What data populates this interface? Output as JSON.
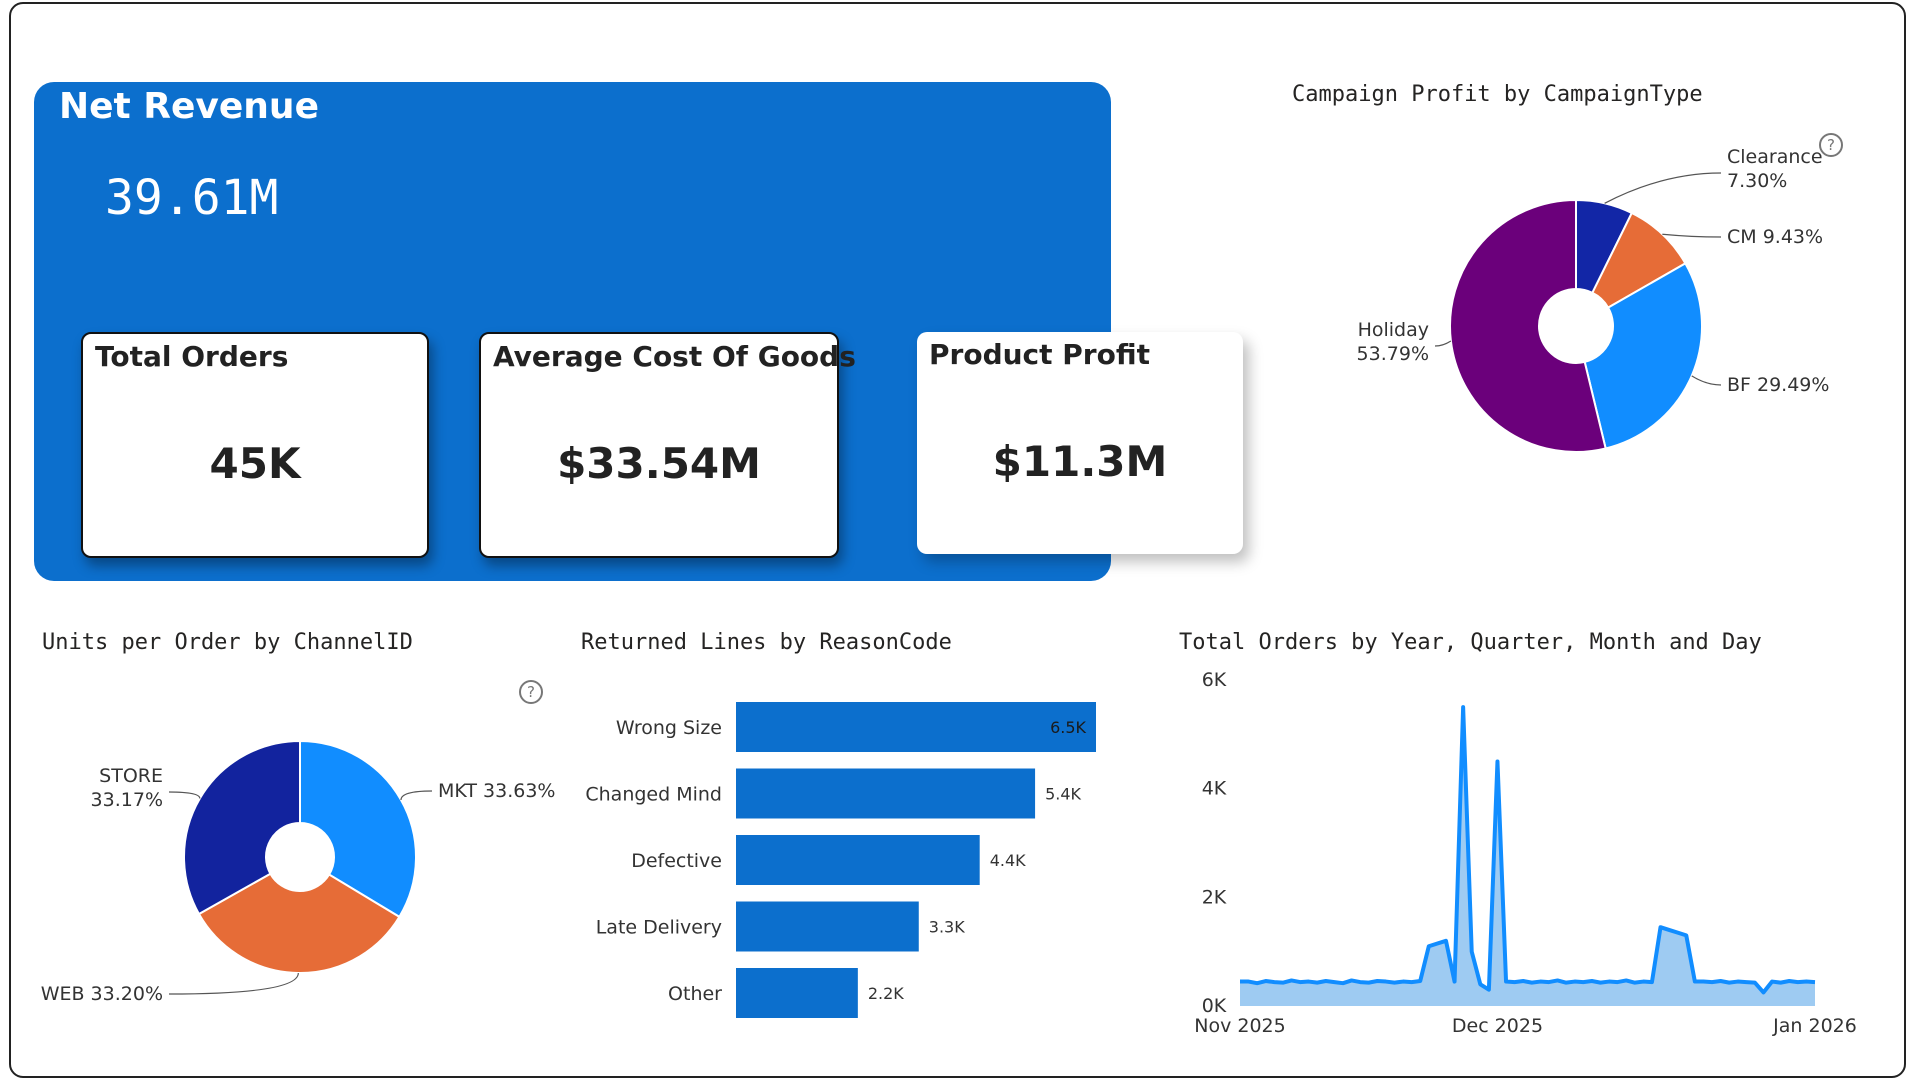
{
  "kpi": {
    "net_revenue": {
      "title": "Net Revenue",
      "value": "39.61M"
    },
    "total_orders": {
      "title": "Total Orders",
      "value": "45K"
    },
    "avg_cogs": {
      "title": "Average Cost Of Goods",
      "value": "$33.54M"
    },
    "product_profit": {
      "title": "Product Profit",
      "value": "$11.3M"
    }
  },
  "campaign_chart": {
    "title": "Campaign Profit by CampaignType",
    "help_icon": "question-circle-icon",
    "chart_data": {
      "type": "pie",
      "donut": true,
      "slices": [
        {
          "label": "Clearance",
          "value": 7.3,
          "display": "7.30%",
          "color": "#1226a6"
        },
        {
          "label": "CM",
          "value": 9.43,
          "display": "9.43%",
          "color": "#e66c37"
        },
        {
          "label": "BF",
          "value": 29.49,
          "display": "29.49%",
          "color": "#118dff"
        },
        {
          "label": "Holiday",
          "value": 53.79,
          "display": "53.79%",
          "color": "#6b007b"
        }
      ]
    }
  },
  "units_chart": {
    "title": "Units per Order by ChannelID",
    "help_icon": "question-circle-icon",
    "chart_data": {
      "type": "pie",
      "donut": true,
      "slices": [
        {
          "label": "MKT",
          "value": 33.63,
          "display": "33.63%",
          "color": "#118dff"
        },
        {
          "label": "WEB",
          "value": 33.2,
          "display": "33.20%",
          "color": "#e66c37"
        },
        {
          "label": "STORE",
          "value": 33.17,
          "display": "33.17%",
          "color": "#12239e"
        }
      ]
    }
  },
  "returns_chart": {
    "title": "Returned Lines by ReasonCode",
    "chart_data": {
      "type": "bar",
      "orientation": "horizontal",
      "categories": [
        "Wrong Size",
        "Changed Mind",
        "Defective",
        "Late Delivery",
        "Other"
      ],
      "values": [
        6500,
        5400,
        4400,
        3300,
        2200
      ],
      "data_labels": [
        "6.5K",
        "5.4K",
        "4.4K",
        "3.3K",
        "2.2K"
      ],
      "color": "#0c6fcd"
    }
  },
  "orders_chart": {
    "title": "Total Orders by Year, Quarter, Month and Day",
    "chart_data": {
      "type": "area",
      "x_tick_labels": [
        "Nov 2025",
        "Dec 2025",
        "Jan 2026"
      ],
      "y_tick_labels": [
        "0K",
        "2K",
        "4K",
        "6K"
      ],
      "ylim": [
        0,
        6000
      ],
      "xlim": [
        "2025-11-01",
        "2026-01-07"
      ],
      "color": "#118dff",
      "fill": "#9ecbf2",
      "points": [
        [
          "2025-11-01",
          450
        ],
        [
          "2025-11-02",
          450
        ],
        [
          "2025-11-03",
          420
        ],
        [
          "2025-11-04",
          460
        ],
        [
          "2025-11-05",
          440
        ],
        [
          "2025-11-06",
          430
        ],
        [
          "2025-11-07",
          470
        ],
        [
          "2025-11-08",
          440
        ],
        [
          "2025-11-09",
          450
        ],
        [
          "2025-11-10",
          430
        ],
        [
          "2025-11-11",
          460
        ],
        [
          "2025-11-12",
          440
        ],
        [
          "2025-11-13",
          420
        ],
        [
          "2025-11-14",
          470
        ],
        [
          "2025-11-15",
          440
        ],
        [
          "2025-11-16",
          430
        ],
        [
          "2025-11-17",
          460
        ],
        [
          "2025-11-18",
          450
        ],
        [
          "2025-11-19",
          430
        ],
        [
          "2025-11-20",
          450
        ],
        [
          "2025-11-21",
          440
        ],
        [
          "2025-11-22",
          460
        ],
        [
          "2025-11-23",
          1100
        ],
        [
          "2025-11-24",
          1150
        ],
        [
          "2025-11-25",
          1200
        ],
        [
          "2025-11-26",
          450
        ],
        [
          "2025-11-27",
          5500
        ],
        [
          "2025-11-28",
          1000
        ],
        [
          "2025-11-29",
          400
        ],
        [
          "2025-11-30",
          300
        ],
        [
          "2025-12-01",
          4500
        ],
        [
          "2025-12-02",
          450
        ],
        [
          "2025-12-03",
          440
        ],
        [
          "2025-12-04",
          460
        ],
        [
          "2025-12-05",
          430
        ],
        [
          "2025-12-06",
          450
        ],
        [
          "2025-12-07",
          440
        ],
        [
          "2025-12-08",
          470
        ],
        [
          "2025-12-09",
          430
        ],
        [
          "2025-12-10",
          450
        ],
        [
          "2025-12-11",
          440
        ],
        [
          "2025-12-12",
          460
        ],
        [
          "2025-12-13",
          430
        ],
        [
          "2025-12-14",
          450
        ],
        [
          "2025-12-15",
          440
        ],
        [
          "2025-12-16",
          470
        ],
        [
          "2025-12-17",
          430
        ],
        [
          "2025-12-18",
          450
        ],
        [
          "2025-12-19",
          440
        ],
        [
          "2025-12-20",
          1450
        ],
        [
          "2025-12-21",
          1400
        ],
        [
          "2025-12-22",
          1350
        ],
        [
          "2025-12-23",
          1300
        ],
        [
          "2025-12-24",
          450
        ],
        [
          "2025-12-25",
          450
        ],
        [
          "2025-12-26",
          440
        ],
        [
          "2025-12-27",
          460
        ],
        [
          "2025-12-28",
          430
        ],
        [
          "2025-12-29",
          450
        ],
        [
          "2025-12-30",
          440
        ],
        [
          "2025-12-31",
          430
        ],
        [
          "2026-01-01",
          250
        ],
        [
          "2026-01-02",
          450
        ],
        [
          "2026-01-03",
          430
        ],
        [
          "2026-01-04",
          460
        ],
        [
          "2026-01-05",
          440
        ],
        [
          "2026-01-06",
          450
        ],
        [
          "2026-01-07",
          440
        ]
      ]
    }
  }
}
